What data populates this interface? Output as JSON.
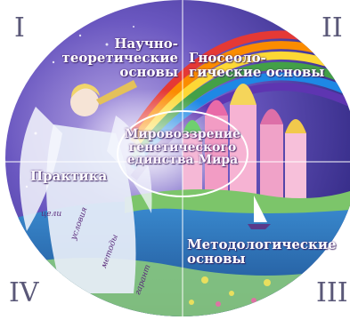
{
  "quadrant_numerals": {
    "q1": "I",
    "q2": "II",
    "q3": "III",
    "q4": "IV"
  },
  "labels": {
    "top_left": [
      "Научно-",
      "теоретические",
      "основы"
    ],
    "top_right": [
      "Гносеоло-",
      "гические основы"
    ],
    "center": [
      "Мировоззрение",
      "генетического",
      "единства Мира"
    ],
    "left": "Практика",
    "bottom_right": [
      "Методологические",
      "основы"
    ]
  },
  "practice_words": [
    "цели",
    "условия",
    "методы",
    "гарант"
  ],
  "colors": {
    "sky": "#4a3fa3",
    "sea": "#2a6fb0",
    "angel": "#e8eef8",
    "rainbow": [
      "#e53935",
      "#fb8c00",
      "#fdd835",
      "#43a047",
      "#1e88e5",
      "#5e35b1"
    ],
    "numeral": "#5a5878"
  }
}
